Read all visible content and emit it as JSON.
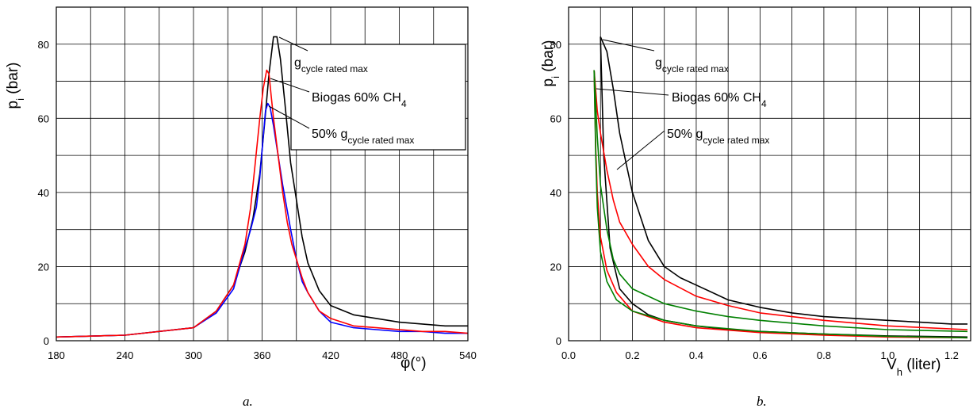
{
  "colors": {
    "rated": "#000000",
    "half": "#0000ff",
    "biogas": "#ff0000",
    "green": "#008000",
    "grid": "#000000"
  },
  "chart_data": [
    {
      "type": "line",
      "caption": "a.",
      "xlabel": "φ(°)",
      "ylabel": "p<sub>i</sub> (bar)",
      "ylabel_main": "p",
      "ylabel_sub": "i",
      "ylabel_tail": " (bar)",
      "xlim": [
        180,
        540
      ],
      "ylim": [
        0,
        90
      ],
      "xticks": [
        "180",
        "240",
        "300",
        "360",
        "420",
        "480",
        "540"
      ],
      "yticks": [
        "0",
        "20",
        "40",
        "60",
        "80"
      ],
      "grid": true,
      "legend": [
        {
          "main": "g",
          "sub": "cycle rated max"
        },
        {
          "main": "Biogas 60% CH",
          "sub": "4"
        },
        {
          "main": "50% g",
          "sub": "cycle rated max"
        }
      ],
      "series": [
        {
          "key": "rated",
          "color": "#000000",
          "x": [
            180,
            240,
            300,
            320,
            335,
            345,
            352,
            358,
            362,
            366,
            370,
            373,
            376,
            380,
            385,
            390,
            395,
            400,
            410,
            420,
            440,
            460,
            480,
            500,
            520,
            540
          ],
          "y": [
            1,
            1.5,
            3.5,
            8,
            15,
            24,
            33,
            45,
            58,
            72,
            82,
            82,
            76,
            64,
            48,
            38,
            28,
            21,
            13.5,
            9.5,
            7,
            6,
            5,
            4.5,
            4,
            4
          ]
        },
        {
          "key": "half",
          "color": "#0000ff",
          "x": [
            180,
            240,
            300,
            320,
            335,
            345,
            350,
            355,
            358,
            361,
            363,
            365,
            367,
            370,
            374,
            378,
            385,
            390,
            395,
            400,
            410,
            420,
            440,
            460,
            480,
            500,
            520,
            540
          ],
          "y": [
            1,
            1.5,
            3.5,
            7.5,
            14,
            25,
            30,
            36,
            44,
            55,
            62,
            64,
            63,
            58,
            50,
            42,
            30,
            22,
            16,
            13,
            8,
            5,
            3.5,
            3,
            2.5,
            2.5,
            2,
            2
          ]
        },
        {
          "key": "biogas",
          "color": "#ff0000",
          "x": [
            180,
            240,
            300,
            320,
            335,
            345,
            350,
            354,
            358,
            361,
            364,
            366,
            368,
            370,
            374,
            378,
            382,
            386,
            390,
            395,
            400,
            410,
            420,
            440,
            460,
            480,
            500,
            520,
            540
          ],
          "y": [
            1,
            1.5,
            3.5,
            8,
            15,
            26,
            36,
            48,
            60,
            68,
            73,
            72,
            66,
            60,
            50,
            40,
            32,
            26,
            22,
            17,
            13,
            8,
            6,
            4,
            3.5,
            3,
            2.5,
            2.5,
            2
          ]
        }
      ]
    },
    {
      "type": "line",
      "caption": "b.",
      "xlabel_main": "V",
      "xlabel_sub": "h",
      "xlabel_tail": " (liter)",
      "ylabel_main": "p",
      "ylabel_sub": "i",
      "ylabel_tail": " (bar)",
      "xlim": [
        0.0,
        1.26
      ],
      "ylim": [
        0,
        90
      ],
      "xticks": [
        "0.0",
        "0.2",
        "0.4",
        "0.6",
        "0.8",
        "1.0",
        "1.2"
      ],
      "yticks": [
        "0",
        "20",
        "40",
        "60",
        "80"
      ],
      "grid": true,
      "legend": [
        {
          "main": "g",
          "sub": "cycle rated max"
        },
        {
          "main": "Biogas 60% CH",
          "sub": "4"
        },
        {
          "main": "50% g",
          "sub": "cycle rated max"
        }
      ],
      "series": [
        {
          "key": "rated-compression",
          "color": "#000000",
          "x": [
            1.25,
            1.0,
            0.8,
            0.6,
            0.5,
            0.4,
            0.3,
            0.25,
            0.2,
            0.16,
            0.13,
            0.11,
            0.1
          ],
          "y": [
            1,
            1.3,
            1.8,
            2.5,
            3,
            4,
            5.5,
            7,
            10,
            14,
            25,
            50,
            82
          ]
        },
        {
          "key": "rated-expansion",
          "color": "#000000",
          "x": [
            0.1,
            0.12,
            0.14,
            0.16,
            0.18,
            0.2,
            0.25,
            0.3,
            0.35,
            0.4,
            0.5,
            0.6,
            0.7,
            0.8,
            0.9,
            1.0,
            1.1,
            1.2,
            1.25
          ],
          "y": [
            82,
            78,
            68,
            56,
            48,
            40,
            27,
            20,
            17,
            15,
            11,
            9,
            7.5,
            6.5,
            6,
            5.5,
            5,
            4.5,
            4.5
          ]
        },
        {
          "key": "biogas-compression",
          "color": "#ff0000",
          "x": [
            1.25,
            1.0,
            0.8,
            0.6,
            0.4,
            0.3,
            0.2,
            0.15,
            0.12,
            0.1,
            0.09,
            0.085,
            0.08
          ],
          "y": [
            0.8,
            1,
            1.5,
            2.2,
            3.5,
            5,
            8,
            13,
            19,
            28,
            40,
            52,
            73
          ]
        },
        {
          "key": "biogas-expansion",
          "color": "#ff0000",
          "x": [
            0.08,
            0.09,
            0.1,
            0.12,
            0.14,
            0.16,
            0.2,
            0.25,
            0.3,
            0.4,
            0.5,
            0.6,
            0.8,
            1.0,
            1.25
          ],
          "y": [
            73,
            62,
            56,
            46,
            38,
            32,
            26,
            20,
            16.5,
            12,
            9.5,
            7.5,
            5.5,
            4,
            3
          ]
        },
        {
          "key": "half-compression",
          "color": "#008000",
          "x": [
            1.25,
            1.0,
            0.8,
            0.6,
            0.4,
            0.3,
            0.2,
            0.15,
            0.12,
            0.1,
            0.09,
            0.085,
            0.08
          ],
          "y": [
            0.8,
            1.2,
            1.8,
            2.5,
            4,
            5.5,
            8,
            11,
            16,
            24,
            36,
            50,
            73
          ]
        },
        {
          "key": "half-expansion",
          "color": "#008000",
          "x": [
            0.08,
            0.09,
            0.1,
            0.12,
            0.14,
            0.16,
            0.2,
            0.25,
            0.3,
            0.4,
            0.5,
            0.6,
            0.8,
            1.0,
            1.25
          ],
          "y": [
            73,
            55,
            42,
            30,
            22,
            18,
            14,
            12,
            10,
            8,
            6.5,
            5.5,
            4,
            3,
            2.5
          ]
        }
      ]
    }
  ]
}
